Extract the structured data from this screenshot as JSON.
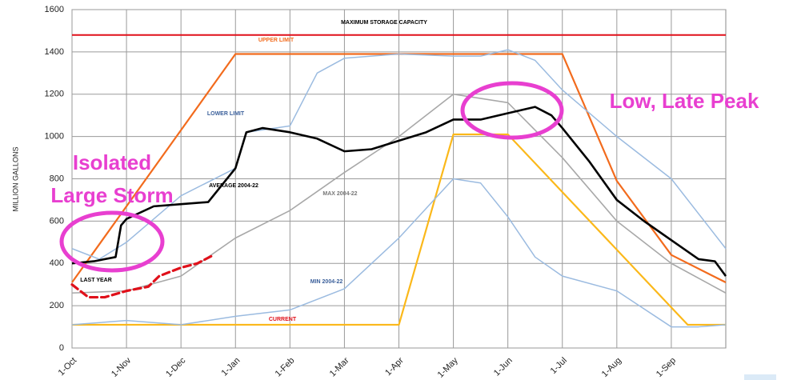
{
  "chart_data": {
    "type": "line",
    "y_label": "MILLION GALLONS",
    "xlim": [
      0,
      12
    ],
    "xticks": [
      {
        "value": 0,
        "label": "1-Oct"
      },
      {
        "value": 1,
        "label": "1-Nov"
      },
      {
        "value": 2,
        "label": "1-Dec"
      },
      {
        "value": 3,
        "label": "1-Jan"
      },
      {
        "value": 4,
        "label": "1-Feb"
      },
      {
        "value": 5,
        "label": "1-Mar"
      },
      {
        "value": 6,
        "label": "1-Apr"
      },
      {
        "value": 7,
        "label": "1-May"
      },
      {
        "value": 8,
        "label": "1-Jun"
      },
      {
        "value": 9,
        "label": "1-Jul"
      },
      {
        "value": 10,
        "label": "1-Aug"
      },
      {
        "value": 11,
        "label": "1-Sep"
      }
    ],
    "ylim": [
      0,
      1600
    ],
    "yticks": [
      0,
      200,
      400,
      600,
      800,
      1000,
      1200,
      1400,
      1600
    ],
    "grid": true,
    "series": [
      {
        "name": "MAXIMUM STORAGE CAPACITY",
        "color": "#e0101a",
        "x": [
          0,
          12
        ],
        "values": [
          1480,
          1480
        ]
      },
      {
        "name": "UPPER LIMIT",
        "color": "#f26b1d",
        "x": [
          0,
          3,
          7,
          9,
          10,
          11,
          12
        ],
        "values": [
          310,
          1390,
          1390,
          1390,
          790,
          440,
          310
        ]
      },
      {
        "name": "LOWER LIMIT",
        "color": "#fbb81a",
        "x": [
          0,
          6,
          7,
          8,
          11.3,
          12
        ],
        "values": [
          110,
          110,
          1010,
          1010,
          110,
          110
        ]
      },
      {
        "name": "AVERAGE 2004-22",
        "color": "#a8a8a8",
        "x": [
          0,
          1,
          2,
          3,
          4,
          5,
          6,
          7,
          8,
          9,
          10,
          11,
          12
        ],
        "values": [
          260,
          270,
          340,
          520,
          650,
          830,
          1000,
          1200,
          1160,
          900,
          600,
          400,
          260
        ]
      },
      {
        "name": "MAX 2004-22",
        "color": "#9bbbe0",
        "x": [
          0,
          0.5,
          1,
          2,
          3,
          3.2,
          4,
          4.5,
          5,
          6,
          7,
          7.5,
          8,
          8.5,
          9,
          10,
          11,
          12
        ],
        "values": [
          470,
          420,
          500,
          720,
          850,
          1020,
          1050,
          1300,
          1370,
          1390,
          1380,
          1380,
          1410,
          1360,
          1220,
          1000,
          800,
          470
        ]
      },
      {
        "name": "MIN 2004-22",
        "color": "#9bbbe0",
        "x": [
          0,
          1,
          2,
          3,
          4,
          5,
          6,
          7,
          7.5,
          8,
          8.5,
          9,
          10,
          11,
          11.5,
          12
        ],
        "values": [
          110,
          130,
          110,
          150,
          180,
          280,
          520,
          800,
          780,
          620,
          430,
          340,
          270,
          100,
          100,
          110
        ]
      },
      {
        "name": "LAST YEAR",
        "color": "#000000",
        "x": [
          0,
          0.4,
          0.8,
          0.9,
          1,
          1.5,
          2,
          2.5,
          3,
          3.2,
          3.5,
          4,
          4.5,
          5,
          5.5,
          6,
          6.5,
          7,
          7.5,
          8,
          8.5,
          8.8,
          9,
          9.5,
          10,
          10.5,
          11,
          11.5,
          11.8,
          12
        ],
        "values": [
          400,
          410,
          430,
          580,
          610,
          670,
          680,
          690,
          850,
          1020,
          1040,
          1020,
          990,
          930,
          940,
          980,
          1020,
          1080,
          1080,
          1110,
          1140,
          1100,
          1040,
          880,
          700,
          600,
          510,
          420,
          410,
          340
        ]
      },
      {
        "name": "CURRENT",
        "color": "#e0101a",
        "dashed": true,
        "x": [
          0,
          0.3,
          0.6,
          1,
          1.4,
          1.6,
          2,
          2.3,
          2.6
        ],
        "values": [
          300,
          240,
          240,
          270,
          290,
          340,
          380,
          400,
          440
        ]
      }
    ],
    "annotations": [
      "Isolated",
      "Large Storm",
      "Low, Late Peak"
    ]
  }
}
